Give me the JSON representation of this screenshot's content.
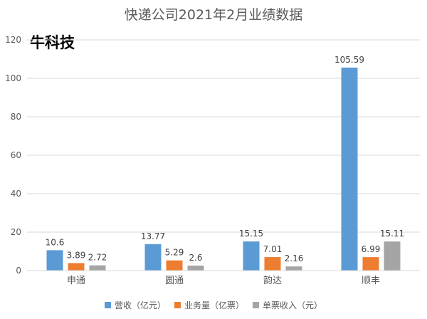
{
  "watermark": "牛科技",
  "chart_data": {
    "type": "bar",
    "title": "快递公司2021年2月业绩数据",
    "xlabel": "",
    "ylabel": "",
    "categories": [
      "申通",
      "圆通",
      "韵达",
      "顺丰"
    ],
    "series": [
      {
        "name": "营收（亿元）",
        "color": "#5B9BD5",
        "values": [
          10.6,
          13.77,
          15.15,
          105.59
        ]
      },
      {
        "name": "业务量（亿票）",
        "color": "#ED7D31",
        "values": [
          3.89,
          5.29,
          7.01,
          6.99
        ]
      },
      {
        "name": "单票收入（元）",
        "color": "#A5A5A5",
        "values": [
          2.72,
          2.6,
          2.16,
          15.11
        ]
      }
    ],
    "ylim": [
      0,
      120
    ],
    "yticks": [
      0,
      20,
      40,
      60,
      80,
      100,
      120
    ],
    "grid": true,
    "legend": "bottom"
  }
}
